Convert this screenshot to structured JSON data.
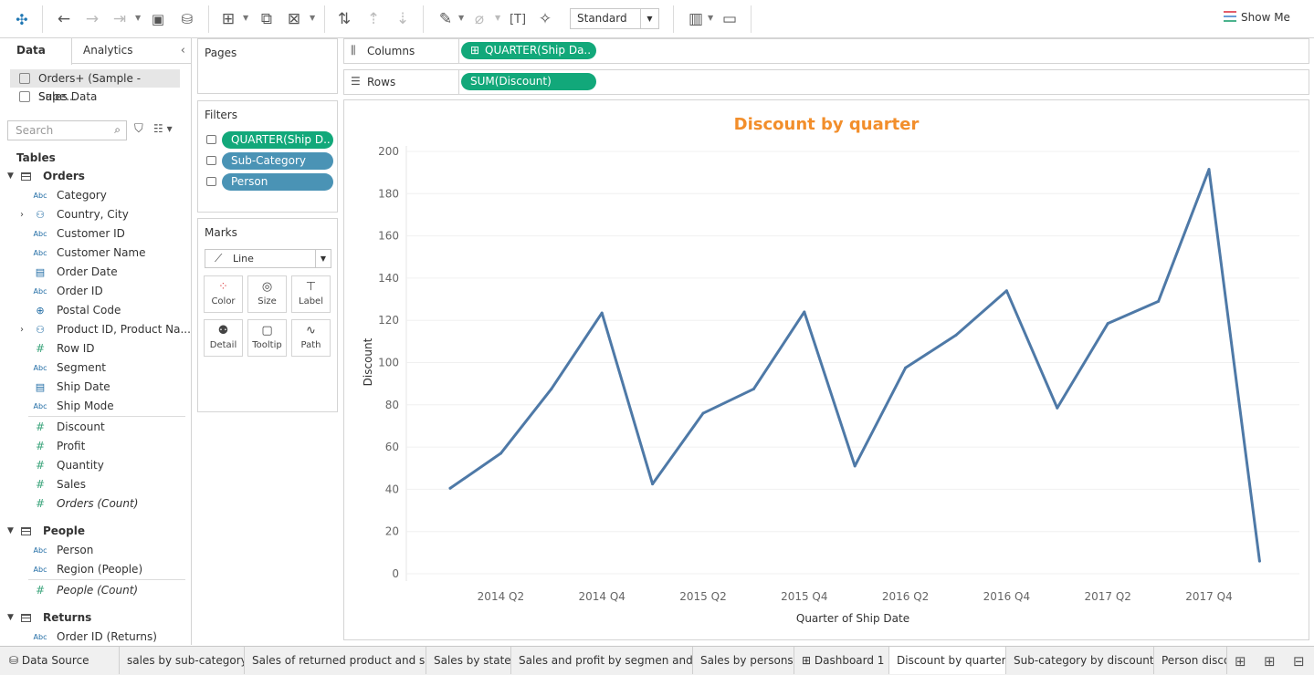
{
  "toolbar": {
    "icons": [
      "tableau-logo-icon",
      "undo-icon",
      "redo-icon",
      "replay-icon",
      "save-icon",
      "new-datasource-icon",
      "new-worksheet-icon",
      "duplicate-icon",
      "clear-sheet-icon",
      "swap-icon",
      "sort-ascending-icon",
      "sort-descending-icon",
      "highlight-icon",
      "group-icon",
      "text-label-icon",
      "pin-icon",
      "show-cards-icon",
      "presentation-icon"
    ],
    "fit_mode": "Standard",
    "show_me": "Show Me"
  },
  "left_panel": {
    "tab_data": "Data",
    "tab_analytics": "Analytics",
    "datasources": [
      "Orders+ (Sample - Supe...",
      "Sales Data"
    ],
    "search_placeholder": "Search",
    "tables_header": "Tables",
    "tables": [
      {
        "name": "Orders",
        "dimensions": [
          {
            "label": "Category",
            "type": "Abc"
          },
          {
            "label": "Country, City",
            "type": "hier"
          },
          {
            "label": "Customer ID",
            "type": "Abc"
          },
          {
            "label": "Customer Name",
            "type": "Abc"
          },
          {
            "label": "Order Date",
            "type": "date"
          },
          {
            "label": "Order ID",
            "type": "Abc"
          },
          {
            "label": "Postal Code",
            "type": "geo"
          },
          {
            "label": "Product ID, Product Na...",
            "type": "hier"
          },
          {
            "label": "Row ID",
            "type": "#"
          },
          {
            "label": "Segment",
            "type": "Abc"
          },
          {
            "label": "Ship Date",
            "type": "date"
          },
          {
            "label": "Ship Mode",
            "type": "Abc"
          }
        ],
        "measures": [
          "Discount",
          "Profit",
          "Quantity",
          "Sales",
          "Orders (Count)"
        ]
      },
      {
        "name": "People",
        "dimensions": [
          {
            "label": "Person",
            "type": "Abc"
          },
          {
            "label": "Region (People)",
            "type": "Abc"
          }
        ],
        "measures": [
          "People (Count)"
        ]
      },
      {
        "name": "Returns",
        "dimensions": [
          {
            "label": "Order ID (Returns)",
            "type": "Abc"
          }
        ],
        "measures": []
      }
    ]
  },
  "cards": {
    "pages": "Pages",
    "filters_title": "Filters",
    "filters": [
      "QUARTER(Ship D..",
      "Sub-Category",
      "Person"
    ],
    "marks_title": "Marks",
    "mark_type": "Line",
    "mark_buttons": [
      "Color",
      "Size",
      "Label",
      "Detail",
      "Tooltip",
      "Path"
    ]
  },
  "shelves": {
    "columns_label": "Columns",
    "columns_pill": "QUARTER(Ship Da..",
    "rows_label": "Rows",
    "rows_pill": "SUM(Discount)"
  },
  "chart_data": {
    "type": "line",
    "title": "Discount by quarter",
    "xlabel": "Quarter of Ship Date",
    "ylabel": "Discount",
    "x": [
      "2014 Q1",
      "2014 Q2",
      "2014 Q3",
      "2014 Q4",
      "2015 Q1",
      "2015 Q2",
      "2015 Q3",
      "2015 Q4",
      "2016 Q1",
      "2016 Q2",
      "2016 Q3",
      "2016 Q4",
      "2017 Q1",
      "2017 Q2",
      "2017 Q3",
      "2017 Q4",
      "2018 Q1"
    ],
    "x_tick_labels": [
      "2014 Q2",
      "2014 Q4",
      "2015 Q2",
      "2015 Q4",
      "2016 Q2",
      "2016 Q4",
      "2017 Q2",
      "2017 Q4"
    ],
    "series": [
      {
        "values": [
          40.5,
          57,
          87.5,
          123.5,
          42.5,
          76,
          87.5,
          124,
          51,
          97.5,
          113,
          134,
          78.5,
          118.5,
          129,
          191.5,
          6
        ]
      }
    ],
    "ylim": [
      0,
      200
    ],
    "yticks": [
      0,
      20,
      40,
      60,
      80,
      100,
      120,
      140,
      160,
      180,
      200
    ],
    "grid": true,
    "title_color": "#f28e2b",
    "line_color": "#4e79a7"
  },
  "sheet_tabs": {
    "datasource": "Data Source",
    "tabs": [
      "sales by sub-category",
      "Sales of returned product and s...",
      "Sales by state",
      "Sales and profit by segmen and ...",
      "Sales by persons",
      "Dashboard 1",
      "Discount by quarter",
      "Sub-category by discount",
      "Person disco"
    ],
    "active": "Discount by quarter"
  }
}
